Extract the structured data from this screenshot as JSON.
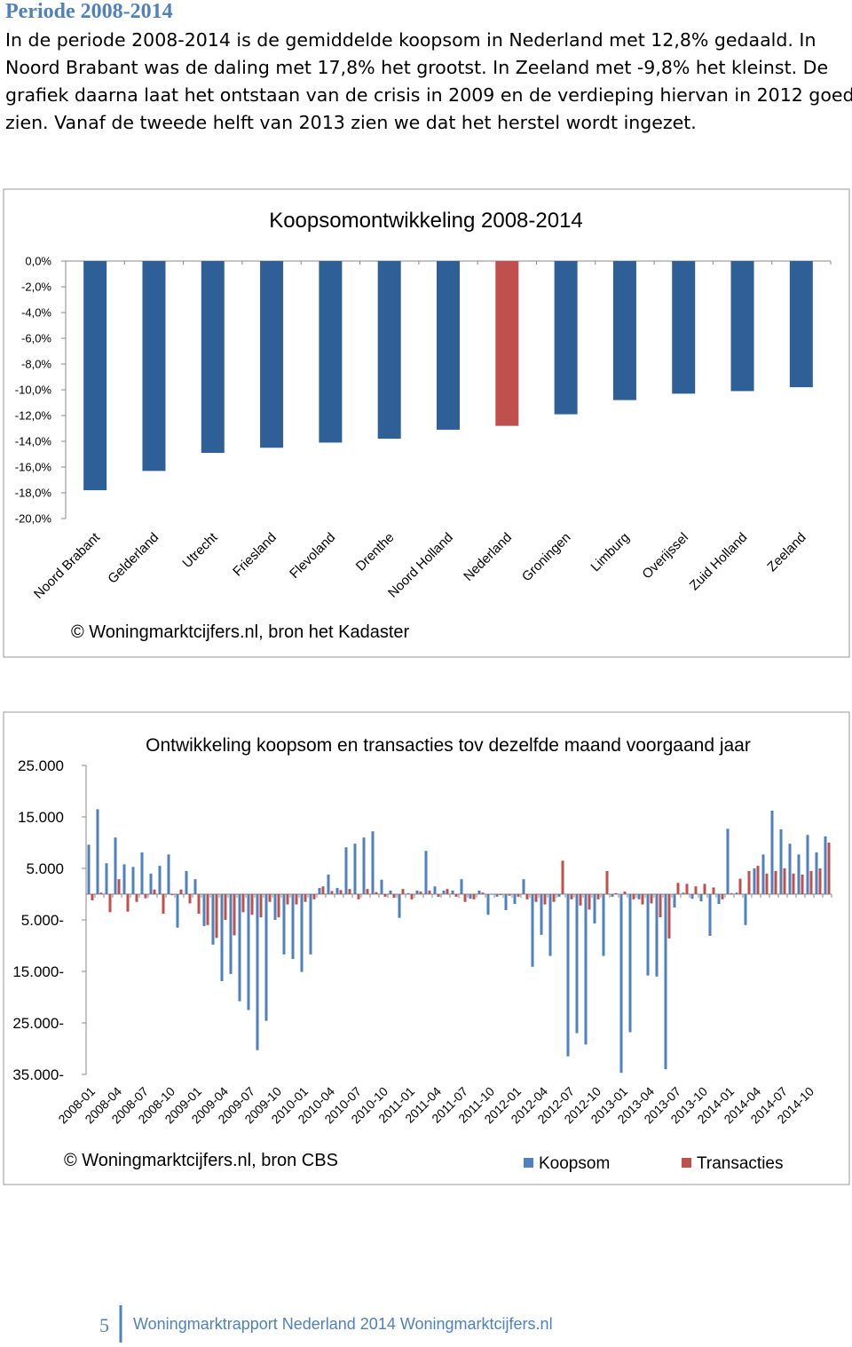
{
  "header": {
    "title": "Periode 2008-2014"
  },
  "paragraph": {
    "lines": [
      "In de periode 2008-2014 is de gemiddelde koopsom in Nederland met 12,8% gedaald. In",
      "Noord Brabant was de daling met 17,8% het grootst. In Zeeland met -9,8% het kleinst. De",
      "grafiek daarna laat het ontstaan van de crisis in 2009 en de verdieping hiervan in 2012 goed",
      "zien. Vanaf de tweede helft van 2013 zien we dat het herstel wordt ingezet."
    ]
  },
  "chart_data": [
    {
      "type": "bar",
      "title": "Koopsomontwikkeling 2008-2014",
      "categories": [
        "Noord Brabant",
        "Gelderland",
        "Utrecht",
        "Friesland",
        "Flevoland",
        "Drenthe",
        "Noord Holland",
        "Nederland",
        "Groningen",
        "Limburg",
        "Overijssel",
        "Zuid Holland",
        "Zeeland"
      ],
      "values": [
        -17.8,
        -16.3,
        -14.9,
        -14.5,
        -14.1,
        -13.8,
        -13.1,
        -12.8,
        -11.9,
        -10.8,
        -10.3,
        -10.1,
        -9.8
      ],
      "colors": [
        "#2f5f97",
        "#2f5f97",
        "#2f5f97",
        "#2f5f97",
        "#2f5f97",
        "#2f5f97",
        "#2f5f97",
        "#c0504d",
        "#2f5f97",
        "#2f5f97",
        "#2f5f97",
        "#2f5f97",
        "#2f5f97"
      ],
      "ylim": [
        -20,
        0
      ],
      "yticks": [
        {
          "value": 0,
          "label": "0,0%"
        },
        {
          "value": -2,
          "label": "-2,0%"
        },
        {
          "value": -4,
          "label": "-4,0%"
        },
        {
          "value": -6,
          "label": "-6,0%"
        },
        {
          "value": -8,
          "label": "-8,0%"
        },
        {
          "value": -10,
          "label": "-10,0%"
        },
        {
          "value": -12,
          "label": "-12,0%"
        },
        {
          "value": -14,
          "label": "-14,0%"
        },
        {
          "value": -16,
          "label": "-16,0%"
        },
        {
          "value": -18,
          "label": "-18,0%"
        },
        {
          "value": -20,
          "label": "-20,0%"
        }
      ],
      "credit": "© Woningmarktcijfers.nl, bron het Kadaster"
    },
    {
      "type": "bar",
      "title": "Ontwikkeling koopsom en transacties tov dezelfde maand voorgaand jaar",
      "categories": [
        "2008-01",
        null,
        null,
        "2008-04",
        null,
        null,
        "2008-07",
        null,
        null,
        "2008-10",
        null,
        null,
        "2009-01",
        null,
        null,
        "2009-04",
        null,
        null,
        "2009-07",
        null,
        null,
        "2009-10",
        null,
        null,
        "2010-01",
        null,
        null,
        "2010-04",
        null,
        null,
        "2010-07",
        null,
        null,
        "2010-10",
        null,
        null,
        "2011-01",
        null,
        null,
        "2011-04",
        null,
        null,
        "2011-07",
        null,
        null,
        "2011-10",
        null,
        null,
        "2012-01",
        null,
        null,
        "2012-04",
        null,
        null,
        "2012-07",
        null,
        null,
        "2012-10",
        null,
        null,
        "2013-01",
        null,
        null,
        "2013-04",
        null,
        null,
        "2013-07",
        null,
        null,
        "2013-10",
        null,
        null,
        "2014-01",
        null,
        null,
        "2014-04",
        null,
        null,
        "2014-07",
        null,
        null,
        "2014-10",
        null,
        null
      ],
      "series": [
        {
          "name": "Koopsom",
          "color": "#4f81bd",
          "values": [
            9600,
            16500,
            6000,
            11000,
            5800,
            5300,
            8100,
            4000,
            5500,
            7700,
            -6500,
            4500,
            2900,
            -6200,
            -9800,
            -16900,
            -15500,
            -20800,
            -22500,
            -30300,
            -24600,
            -5000,
            -11700,
            -12600,
            -15100,
            -11700,
            1200,
            3800,
            1200,
            9100,
            9800,
            11000,
            12200,
            2800,
            700,
            -4600,
            200,
            700,
            8400,
            1500,
            700,
            700,
            2900,
            -900,
            700,
            -4000,
            -500,
            -3100,
            -1900,
            2900,
            -14100,
            -7900,
            -12000,
            -500,
            -31500,
            -27000,
            -29200,
            -5700,
            -12000,
            -500,
            -34700,
            -26800,
            -1000,
            -15800,
            -16000,
            -34000,
            -2600,
            300,
            -900,
            -1400,
            -8100,
            -1900,
            12700,
            300,
            -6000,
            5000,
            7700,
            16200,
            12600,
            9800,
            7700,
            11500,
            8100,
            11200
          ]
        },
        {
          "name": "Transacties",
          "color": "#c0504d",
          "values": [
            -1200,
            300,
            -3500,
            2900,
            -3400,
            -1500,
            -800,
            900,
            -3800,
            -200,
            900,
            -1800,
            -3800,
            -6000,
            -8500,
            -5000,
            -8000,
            -3500,
            -4000,
            -4500,
            -1500,
            -4500,
            -2000,
            -2000,
            -1500,
            -1000,
            1500,
            600,
            800,
            1000,
            -1000,
            1000,
            400,
            -500,
            -700,
            1000,
            -1000,
            500,
            700,
            -500,
            1000,
            -500,
            -1500,
            -1000,
            300,
            -100,
            -200,
            -300,
            -500,
            -1000,
            -1500,
            -2000,
            -1500,
            6500,
            -1000,
            -2200,
            -3000,
            -1000,
            4500,
            200,
            500,
            -1000,
            -2000,
            -1800,
            -4500,
            -8600,
            2200,
            2000,
            1500,
            2000,
            1300,
            -1000,
            200,
            3000,
            4500,
            5500,
            4000,
            4500,
            5000,
            4000,
            3800,
            4500,
            5000,
            10000
          ]
        }
      ],
      "ylim": [
        -35000,
        25000
      ],
      "yticks": [
        {
          "value": 25000,
          "label": "25.000"
        },
        {
          "value": 15000,
          "label": "15.000"
        },
        {
          "value": 5000,
          "label": "5.000"
        },
        {
          "value": -5000,
          "label": "5.000-"
        },
        {
          "value": -15000,
          "label": "15.000-"
        },
        {
          "value": -25000,
          "label": "25.000-"
        },
        {
          "value": -35000,
          "label": "35.000-"
        }
      ],
      "credit": "© Woningmarktcijfers.nl, bron CBS"
    }
  ],
  "footer": {
    "page_number": "5",
    "text": "Woningmarktrapport Nederland 2014 Woningmarktcijfers.nl"
  }
}
